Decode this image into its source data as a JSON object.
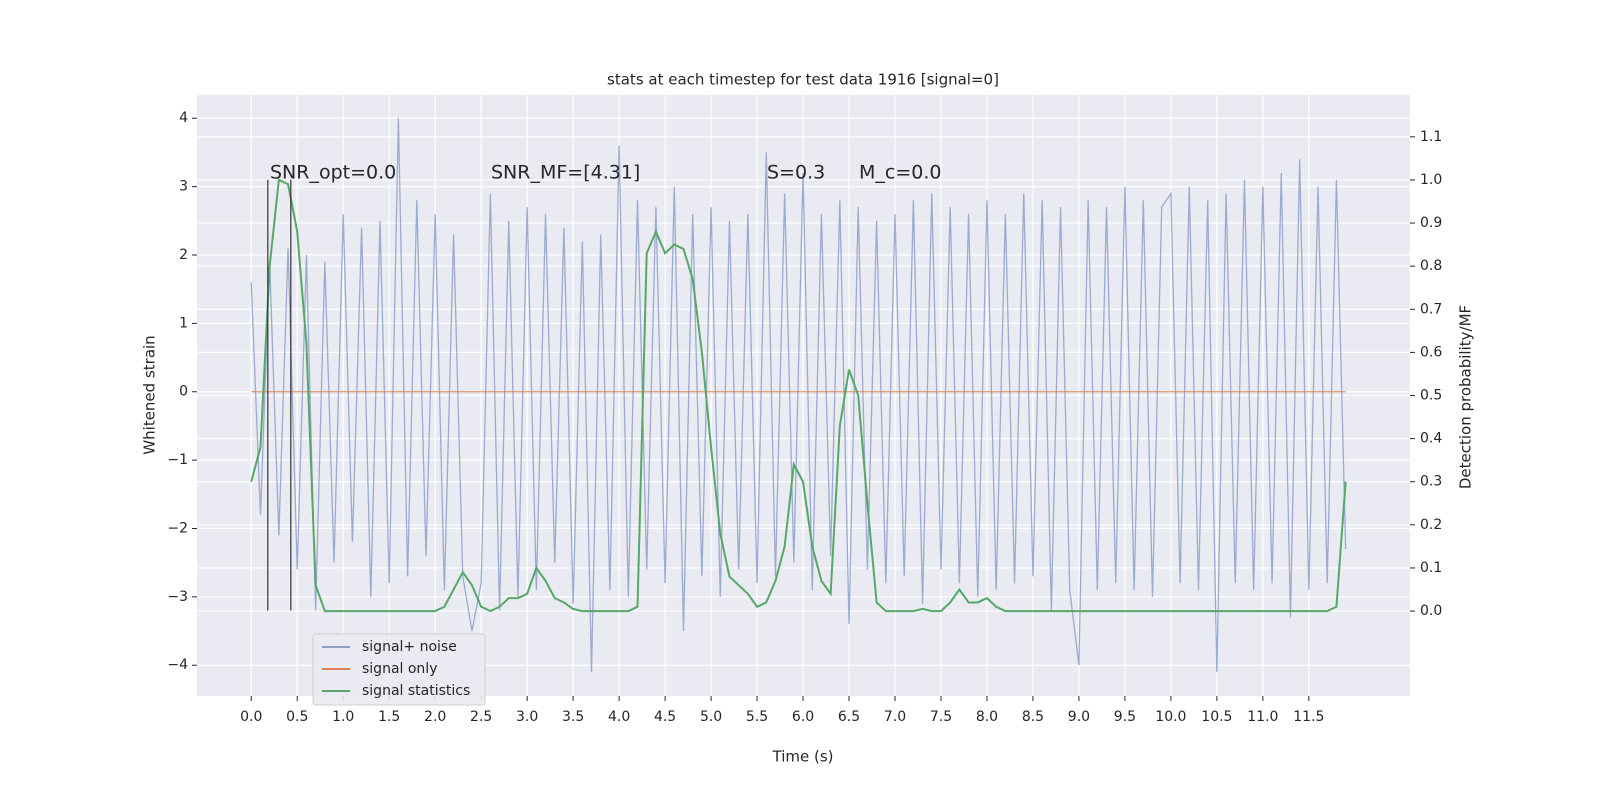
{
  "chart_data": {
    "type": "line",
    "title": "stats at each timestep for test data 1916 [signal=0]",
    "x_label": "Time (s)",
    "y_label": "Whitened strain",
    "y2_label": "Detection probability/MF",
    "annotations": [
      "SNR_opt=0.0",
      "SNR_MF=[4.31]",
      "S=0.3",
      "M_c=0.0"
    ],
    "grid": true,
    "legend": "lower left",
    "xlim": [
      -0.59,
      12.6
    ],
    "ylim": [
      -4.45,
      4.34
    ],
    "y2lim": [
      -0.197,
      1.197
    ],
    "xticks": [
      {
        "value": 0,
        "label": "0.0"
      },
      {
        "value": 0.5,
        "label": "0.5"
      },
      {
        "value": 1,
        "label": "1.0"
      },
      {
        "value": 1.5,
        "label": "1.5"
      },
      {
        "value": 2,
        "label": "2.0"
      },
      {
        "value": 2.5,
        "label": "2.5"
      },
      {
        "value": 3,
        "label": "3.0"
      },
      {
        "value": 3.5,
        "label": "3.5"
      },
      {
        "value": 4,
        "label": "4.0"
      },
      {
        "value": 4.5,
        "label": "4.5"
      },
      {
        "value": 5,
        "label": "5.0"
      },
      {
        "value": 5.5,
        "label": "5.5"
      },
      {
        "value": 6,
        "label": "6.0"
      },
      {
        "value": 6.5,
        "label": "6.5"
      },
      {
        "value": 7,
        "label": "7.0"
      },
      {
        "value": 7.5,
        "label": "7.5"
      },
      {
        "value": 8,
        "label": "8.0"
      },
      {
        "value": 8.5,
        "label": "8.5"
      },
      {
        "value": 9,
        "label": "9.0"
      },
      {
        "value": 9.5,
        "label": "9.5"
      },
      {
        "value": 10,
        "label": "10.0"
      },
      {
        "value": 10.5,
        "label": "10.5"
      },
      {
        "value": 11,
        "label": "11.0"
      },
      {
        "value": 11.5,
        "label": "11.5"
      }
    ],
    "yticks": [
      {
        "value": -4,
        "label": "−4"
      },
      {
        "value": -3,
        "label": "−3"
      },
      {
        "value": -2,
        "label": "−2"
      },
      {
        "value": -1,
        "label": "−1"
      },
      0,
      1,
      2,
      3,
      4
    ],
    "y2ticks": [
      {
        "value": 0,
        "label": "0.0"
      },
      {
        "value": 0.1,
        "label": "0.1"
      },
      {
        "value": 0.2,
        "label": "0.2"
      },
      {
        "value": 0.3,
        "label": "0.3"
      },
      {
        "value": 0.4,
        "label": "0.4"
      },
      {
        "value": 0.5,
        "label": "0.5"
      },
      {
        "value": 0.6,
        "label": "0.6"
      },
      {
        "value": 0.7,
        "label": "0.7"
      },
      {
        "value": 0.8,
        "label": "0.8"
      },
      {
        "value": 0.9,
        "label": "0.9"
      },
      {
        "value": 1,
        "label": "1.0"
      },
      {
        "value": 1.1,
        "label": "1.1"
      }
    ],
    "vlines": {
      "x": [
        0.18,
        0.43
      ],
      "ymin": -3.2,
      "ymax": 3.1,
      "color": "#333333"
    },
    "x": [
      0,
      0.1,
      0.2,
      0.3,
      0.4,
      0.5,
      0.6,
      0.7,
      0.8,
      0.9,
      1,
      1.1,
      1.2,
      1.3,
      1.4,
      1.5,
      1.6,
      1.7,
      1.8,
      1.9,
      2,
      2.1,
      2.2,
      2.3,
      2.4,
      2.5,
      2.6,
      2.7,
      2.8,
      2.9,
      3,
      3.1,
      3.2,
      3.3,
      3.4,
      3.5,
      3.6,
      3.7,
      3.8,
      3.9,
      4,
      4.1,
      4.2,
      4.3,
      4.4,
      4.5,
      4.6,
      4.7,
      4.8,
      4.9,
      5,
      5.1,
      5.2,
      5.3,
      5.4,
      5.5,
      5.6,
      5.7,
      5.8,
      5.9,
      6,
      6.1,
      6.2,
      6.3,
      6.4,
      6.5,
      6.6,
      6.7,
      6.8,
      6.9,
      7,
      7.1,
      7.2,
      7.3,
      7.4,
      7.5,
      7.6,
      7.7,
      7.8,
      7.9,
      8,
      8.1,
      8.2,
      8.3,
      8.4,
      8.5,
      8.6,
      8.7,
      8.8,
      8.9,
      9,
      9.1,
      9.2,
      9.3,
      9.4,
      9.5,
      9.6,
      9.7,
      9.8,
      9.9,
      10,
      10.1,
      10.2,
      10.3,
      10.4,
      10.5,
      10.6,
      10.7,
      10.8,
      10.9,
      11,
      11.1,
      11.2,
      11.3,
      11.4,
      11.5,
      11.6,
      11.7,
      11.8,
      11.9
    ],
    "series": [
      {
        "name": "signal+ noise",
        "color": "#8c9fcb",
        "values": [
          1.6,
          -1.8,
          1.9,
          -2.1,
          2.1,
          -2.6,
          2.0,
          -3.2,
          1.9,
          -2.5,
          2.6,
          -2.2,
          2.4,
          -3.0,
          2.5,
          -2.8,
          4.0,
          -2.7,
          2.8,
          -2.4,
          2.6,
          -2.9,
          2.3,
          -2.7,
          -3.5,
          -2.8,
          2.9,
          -3.2,
          2.5,
          -3.0,
          2.7,
          -2.9,
          2.6,
          -2.5,
          2.4,
          -3.1,
          2.2,
          -4.1,
          2.3,
          -2.9,
          3.6,
          -3.0,
          2.8,
          -2.6,
          2.7,
          -2.8,
          3.0,
          -3.5,
          2.6,
          -2.7,
          2.7,
          -3.0,
          2.5,
          -2.6,
          2.6,
          -2.8,
          3.5,
          -2.7,
          2.9,
          -2.5,
          3.2,
          -2.9,
          2.6,
          -2.4,
          2.8,
          -3.4,
          2.7,
          -2.6,
          2.5,
          -2.8,
          2.6,
          -2.7,
          2.8,
          -3.1,
          2.9,
          -2.6,
          2.7,
          -2.8,
          2.6,
          -3.0,
          2.8,
          -2.9,
          2.6,
          -2.8,
          2.9,
          -2.7,
          2.8,
          -3.2,
          2.7,
          -2.9,
          -4.0,
          2.8,
          -2.9,
          2.7,
          -2.8,
          3.0,
          -2.9,
          2.8,
          -3.0,
          2.7,
          2.9,
          -2.8,
          3.0,
          -2.9,
          2.8,
          -4.1,
          2.9,
          -2.8,
          3.1,
          -2.9,
          3.0,
          -2.8,
          3.2,
          -3.3,
          3.4,
          -2.9,
          3.0,
          -2.8,
          3.1,
          -2.3
        ]
      },
      {
        "name": "signal only",
        "color": "#dd8452",
        "values": [
          0,
          0,
          0,
          0,
          0,
          0,
          0,
          0,
          0,
          0,
          0,
          0,
          0,
          0,
          0,
          0,
          0,
          0,
          0,
          0,
          0,
          0,
          0,
          0,
          0,
          0,
          0,
          0,
          0,
          0,
          0,
          0,
          0,
          0,
          0,
          0,
          0,
          0,
          0,
          0,
          0,
          0,
          0,
          0,
          0,
          0,
          0,
          0,
          0,
          0,
          0,
          0,
          0,
          0,
          0,
          0,
          0,
          0,
          0,
          0,
          0,
          0,
          0,
          0,
          0,
          0,
          0,
          0,
          0,
          0,
          0,
          0,
          0,
          0,
          0,
          0,
          0,
          0,
          0,
          0,
          0,
          0,
          0,
          0,
          0,
          0,
          0,
          0,
          0,
          0,
          0,
          0,
          0,
          0,
          0,
          0,
          0,
          0,
          0,
          0,
          0,
          0,
          0,
          0,
          0,
          0,
          0,
          0,
          0,
          0,
          0,
          0,
          0,
          0,
          0,
          0,
          0,
          0,
          0,
          0
        ]
      },
      {
        "name": "signal statistics",
        "color": "#55a868",
        "axis": "y2",
        "values": [
          0.3,
          0.38,
          0.8,
          1.0,
          0.99,
          0.88,
          0.62,
          0.06,
          0,
          0,
          0,
          0,
          0,
          0,
          0,
          0,
          0,
          0,
          0,
          0,
          0,
          0.01,
          0.05,
          0.09,
          0.06,
          0.01,
          0,
          0.01,
          0.03,
          0.03,
          0.04,
          0.1,
          0.07,
          0.03,
          0.02,
          0.005,
          0,
          0,
          0,
          0,
          0,
          0,
          0.01,
          0.83,
          0.88,
          0.83,
          0.85,
          0.84,
          0.77,
          0.6,
          0.38,
          0.18,
          0.08,
          0.06,
          0.04,
          0.01,
          0.02,
          0.07,
          0.15,
          0.34,
          0.3,
          0.15,
          0.07,
          0.04,
          0.43,
          0.56,
          0.5,
          0.25,
          0.02,
          0,
          0,
          0,
          0,
          0.005,
          0,
          0,
          0.02,
          0.05,
          0.02,
          0.02,
          0.03,
          0.01,
          0,
          0,
          0,
          0,
          0,
          0,
          0,
          0,
          0,
          0,
          0,
          0,
          0,
          0,
          0,
          0,
          0,
          0,
          0,
          0,
          0,
          0,
          0,
          0,
          0,
          0,
          0,
          0,
          0,
          0,
          0,
          0,
          0,
          0,
          0,
          0,
          0.01,
          0.3
        ]
      }
    ]
  }
}
